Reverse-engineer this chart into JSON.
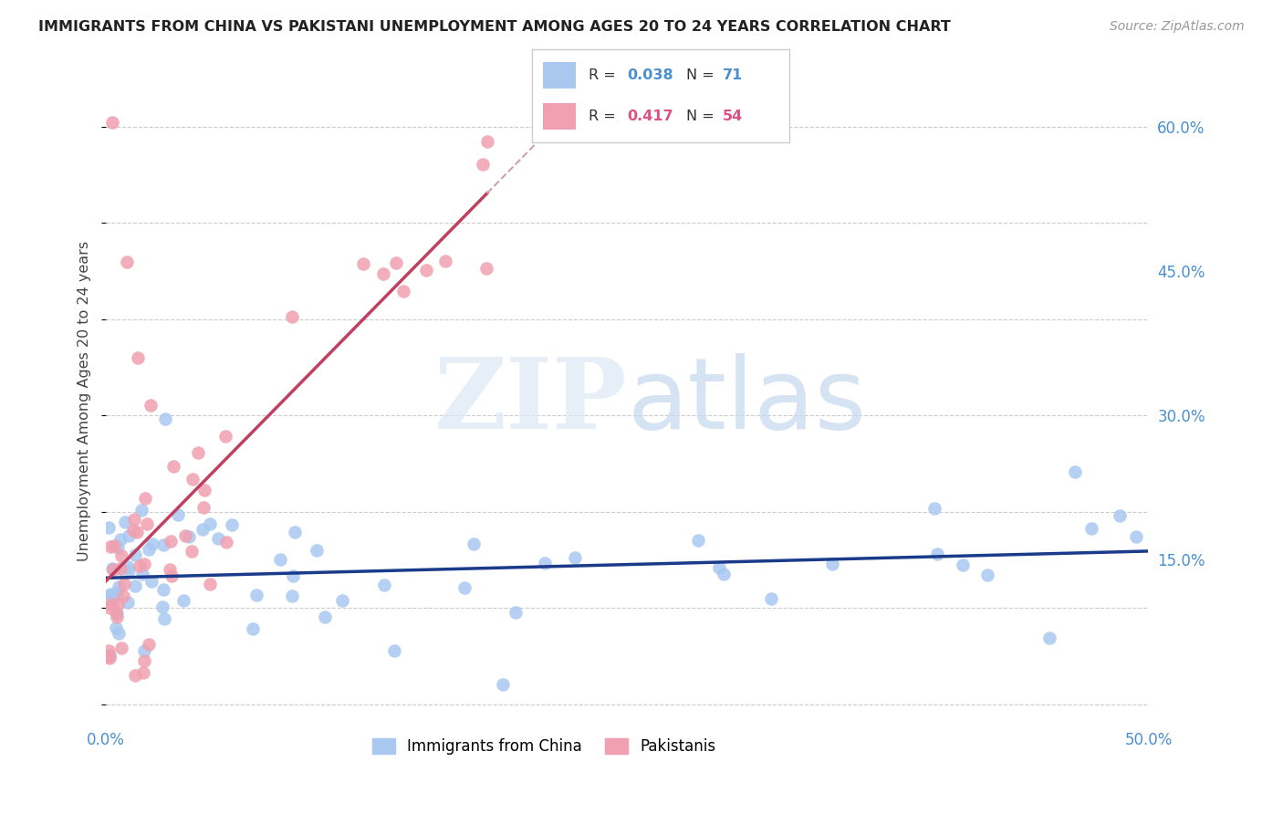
{
  "title": "IMMIGRANTS FROM CHINA VS PAKISTANI UNEMPLOYMENT AMONG AGES 20 TO 24 YEARS CORRELATION CHART",
  "source": "Source: ZipAtlas.com",
  "ylabel": "Unemployment Among Ages 20 to 24 years",
  "xlim": [
    0.0,
    0.5
  ],
  "ylim": [
    -0.02,
    0.65
  ],
  "background_color": "#ffffff",
  "grid_color": "#cccccc",
  "china_color": "#a8c8f0",
  "pakistan_color": "#f0a0b0",
  "china_line_color": "#1a3a8a",
  "pakistan_line_color": "#c04060",
  "r_china": 0.038,
  "n_china": 71,
  "r_pakistan": 0.417,
  "n_pakistan": 54
}
